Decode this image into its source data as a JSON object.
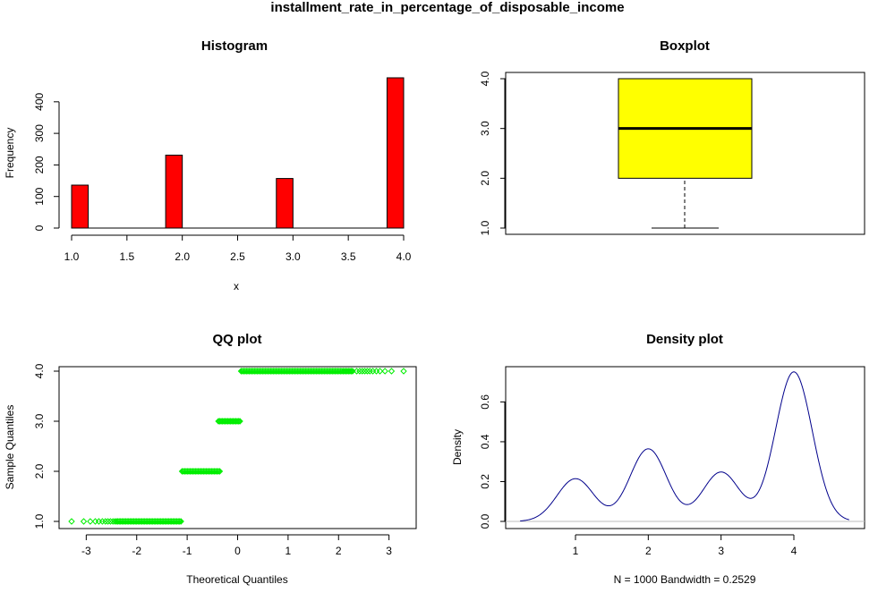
{
  "title": "installment_rate_in_percentage_of_disposable_income",
  "colors": {
    "hist_fill": "#ff0000",
    "box_fill": "#ffff00",
    "qq_points": "#00ee00",
    "density_line": "#00008b",
    "zero_line": "#bebebe"
  },
  "chart_data": [
    {
      "type": "bar",
      "title": "Histogram",
      "xlabel": "x",
      "ylabel": "Frequency",
      "bins": [
        {
          "from": 1.0,
          "to": 1.15,
          "count": 136
        },
        {
          "from": 1.85,
          "to": 2.0,
          "count": 231
        },
        {
          "from": 2.85,
          "to": 3.0,
          "count": 157
        },
        {
          "from": 3.85,
          "to": 4.0,
          "count": 476
        }
      ],
      "xlim": [
        1.0,
        4.0
      ],
      "ylim": [
        0,
        476
      ],
      "x_ticks": [
        "1.0",
        "1.5",
        "2.0",
        "2.5",
        "3.0",
        "3.5",
        "4.0"
      ],
      "y_ticks": [
        "0",
        "100",
        "200",
        "300",
        "400"
      ]
    },
    {
      "type": "box",
      "title": "Boxplot",
      "stats": {
        "min": 1.0,
        "q1": 2.0,
        "median": 3.0,
        "q3": 4.0,
        "max": 4.0
      },
      "ylim": [
        1.0,
        4.0
      ],
      "y_ticks": [
        "1.0",
        "2.0",
        "3.0",
        "4.0"
      ]
    },
    {
      "type": "scatter",
      "title": "QQ plot",
      "xlabel": "Theoretical Quantiles",
      "ylabel": "Sample Quantiles",
      "groups": [
        {
          "y": 1.0,
          "dense_from": -2.4,
          "dense_to": -1.1,
          "sparse": [
            -3.29,
            -3.05,
            -2.92,
            -2.82,
            -2.75,
            -2.68,
            -2.62,
            -2.57,
            -2.52,
            -2.47,
            -2.43
          ]
        },
        {
          "y": 2.0,
          "dense_from": -1.1,
          "dense_to": -0.33,
          "sparse": []
        },
        {
          "y": 3.0,
          "dense_from": -0.38,
          "dense_to": 0.07,
          "sparse": []
        },
        {
          "y": 4.0,
          "dense_from": 0.07,
          "dense_to": 2.3,
          "sparse": [
            2.36,
            2.42,
            2.47,
            2.52,
            2.57,
            2.62,
            2.68,
            2.75,
            2.82,
            2.92,
            3.05,
            3.29
          ]
        }
      ],
      "xlim": [
        -3.29,
        3.29
      ],
      "ylim": [
        1.0,
        4.0
      ],
      "x_ticks": [
        "-3",
        "-2",
        "-1",
        "0",
        "1",
        "2",
        "3"
      ],
      "y_ticks": [
        "1.0",
        "2.0",
        "3.0",
        "4.0"
      ]
    },
    {
      "type": "line",
      "title": "Density plot",
      "xlabel": "N = 1000   Bandwidth = 0.2529",
      "ylabel": "Density",
      "components": [
        {
          "center": 1.0,
          "weight": 0.136
        },
        {
          "center": 2.0,
          "weight": 0.231
        },
        {
          "center": 3.0,
          "weight": 0.157
        },
        {
          "center": 4.0,
          "weight": 0.476
        }
      ],
      "bandwidth": 0.2529,
      "xrange": [
        0.24,
        4.76
      ],
      "ylim": [
        0,
        0.75
      ],
      "x_ticks": [
        "1",
        "2",
        "3",
        "4"
      ],
      "y_ticks": [
        "0.0",
        "0.2",
        "0.4",
        "0.6"
      ]
    }
  ]
}
